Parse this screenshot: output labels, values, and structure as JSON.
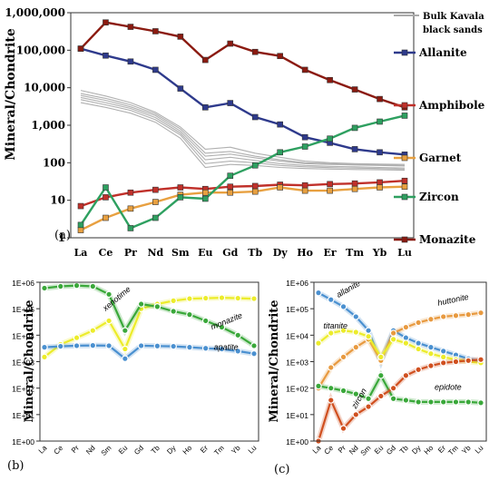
{
  "elements": [
    "La",
    "Ce",
    "Pr",
    "Nd",
    "Sm",
    "Eu",
    "Gd",
    "Tb",
    "Dy",
    "Ho",
    "Er",
    "Tm",
    "Yb",
    "Lu"
  ],
  "chart_data": [
    {
      "panel": "(a)",
      "type": "line",
      "ylabel": "Mineral/Chondrite",
      "yscale": "log",
      "ylim": [
        1,
        1000000
      ],
      "yticks": [
        "1",
        "10",
        "100",
        "1,000",
        "10,000",
        "100,000",
        "1,000,000"
      ],
      "series": [
        {
          "name": "Allanite",
          "color": "#2e3a8c",
          "values": [
            110000,
            72000,
            50000,
            30000,
            9500,
            3000,
            3900,
            1650,
            1050,
            480,
            340,
            230,
            190,
            165
          ]
        },
        {
          "name": "Amphibole",
          "color": "#c0302a",
          "values": [
            7,
            12,
            16,
            19,
            22,
            20,
            23,
            24,
            26,
            25,
            27,
            28,
            30,
            33
          ]
        },
        {
          "name": "Garnet",
          "color": "#e8a040",
          "values": [
            1.6,
            3.4,
            6,
            9,
            14,
            16,
            16,
            17,
            22,
            18,
            18,
            20,
            22,
            23
          ]
        },
        {
          "name": "Zircon",
          "color": "#2ea060",
          "values": [
            2.2,
            22,
            1.8,
            3.4,
            12,
            11,
            45,
            85,
            190,
            270,
            440,
            850,
            1250,
            1800
          ]
        },
        {
          "name": "Monazite",
          "color": "#8b1a10",
          "values": [
            110000,
            550000,
            420000,
            320000,
            230000,
            55000,
            150000,
            90000,
            70000,
            30000,
            16000,
            9000,
            5000,
            3000
          ]
        }
      ],
      "legend_label": "Bulk Kavala black sands",
      "bulk_series": [
        [
          8500,
          6000,
          4000,
          2200,
          900,
          230,
          260,
          180,
          140,
          110,
          100,
          95,
          92,
          90
        ],
        [
          7000,
          5200,
          3500,
          2000,
          800,
          180,
          200,
          150,
          120,
          100,
          95,
          90,
          88,
          85
        ],
        [
          6200,
          4600,
          3100,
          1800,
          700,
          150,
          170,
          135,
          110,
          95,
          90,
          87,
          85,
          82
        ],
        [
          5500,
          4000,
          2800,
          1600,
          620,
          120,
          140,
          115,
          95,
          85,
          80,
          78,
          75,
          72
        ],
        [
          4800,
          3500,
          2500,
          1400,
          550,
          95,
          110,
          100,
          85,
          78,
          74,
          72,
          70,
          68
        ],
        [
          4000,
          3000,
          2100,
          1200,
          450,
          75,
          90,
          85,
          75,
          70,
          68,
          66,
          65,
          63
        ]
      ]
    },
    {
      "panel": "(b)",
      "type": "line",
      "ylabel": "Mineral/Chondrite",
      "yscale": "log",
      "ylim": [
        1,
        1000000
      ],
      "yticks": [
        "1E+00",
        "1E+01",
        "1E+02",
        "1E+03",
        "1E+04",
        "1E+05",
        "1E+06"
      ],
      "series": [
        {
          "name": "xenotime",
          "color": "#ecec2a",
          "values": [
            1500,
            4500,
            8000,
            15000,
            35000,
            3000,
            100000,
            150000,
            200000,
            240000,
            250000,
            260000,
            250000,
            240000
          ]
        },
        {
          "name": "monazite",
          "color": "#3aa83a",
          "values": [
            600000,
            700000,
            750000,
            700000,
            350000,
            15000,
            150000,
            120000,
            80000,
            60000,
            35000,
            20000,
            10000,
            4000
          ]
        },
        {
          "name": "apatite",
          "color": "#4a90d0",
          "values": [
            3500,
            3800,
            4000,
            4100,
            4000,
            1300,
            4000,
            3900,
            3800,
            3500,
            3200,
            3000,
            2500,
            2000
          ]
        }
      ]
    },
    {
      "panel": "(c)",
      "type": "line",
      "ylabel": "Mineral/Chondrite",
      "yscale": "log",
      "ylim": [
        1,
        1000000
      ],
      "yticks": [
        "1E+00",
        "1E+01",
        "1E+02",
        "1E+03",
        "1E+04",
        "1E+05",
        "1E+06"
      ],
      "series": [
        {
          "name": "allanite",
          "color": "#4a90d0",
          "values": [
            400000,
            220000,
            120000,
            50000,
            15000,
            1000,
            15000,
            8000,
            5000,
            3500,
            2500,
            1800,
            1300,
            1000
          ]
        },
        {
          "name": "huttonite",
          "color": "#e89a40",
          "values": [
            100,
            600,
            1500,
            3500,
            7000,
            1100,
            12000,
            20000,
            30000,
            40000,
            50000,
            55000,
            60000,
            70000
          ]
        },
        {
          "name": "titanite",
          "color": "#ecec2a",
          "values": [
            5000,
            12000,
            15000,
            13000,
            9000,
            1500,
            7000,
            5000,
            3000,
            2000,
            1500,
            1200,
            1000,
            900
          ]
        },
        {
          "name": "epidote",
          "color": "#3aa83a",
          "values": [
            120,
            100,
            80,
            60,
            40,
            300,
            40,
            35,
            30,
            30,
            30,
            30,
            30,
            28
          ]
        },
        {
          "name": "zircon",
          "color": "#d05020",
          "values": [
            1,
            35,
            3,
            10,
            20,
            50,
            100,
            300,
            500,
            700,
            900,
            1000,
            1100,
            1200
          ]
        }
      ]
    }
  ]
}
